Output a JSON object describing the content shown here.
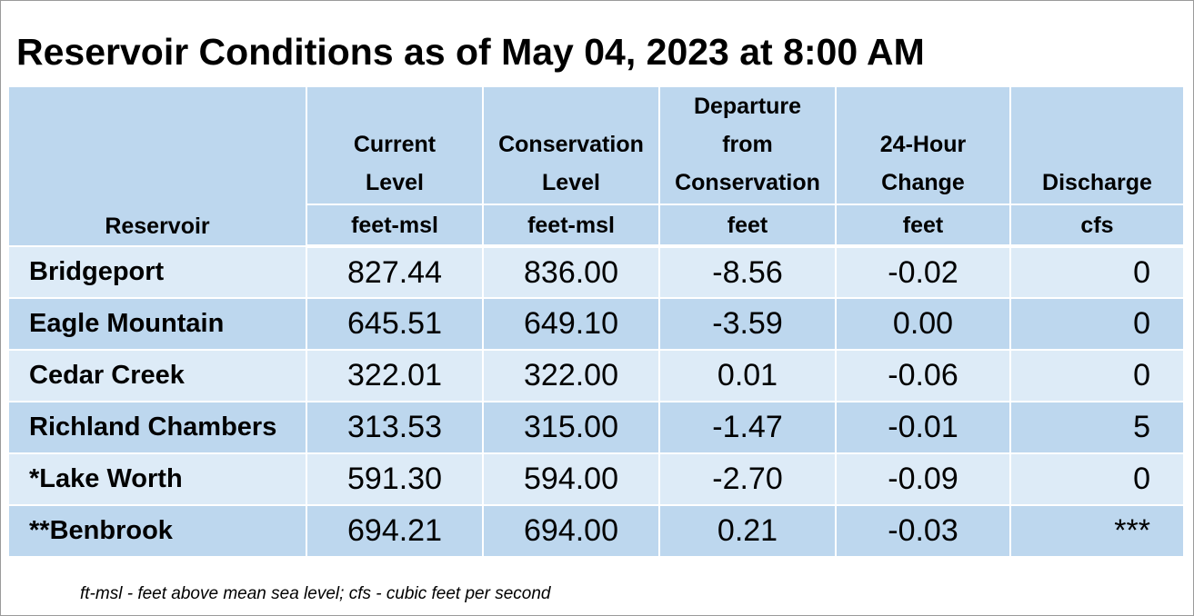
{
  "title": "Reservoir Conditions as of May 04, 2023 at 8:00 AM",
  "headers": {
    "reservoir": "Reservoir",
    "columns": [
      {
        "label_lines": [
          "Current",
          "Level"
        ],
        "unit": "feet-msl"
      },
      {
        "label_lines": [
          "Conservation",
          "Level"
        ],
        "unit": "feet-msl"
      },
      {
        "label_lines": [
          "Departure",
          "from",
          "Conservation"
        ],
        "unit": "feet"
      },
      {
        "label_lines": [
          "24-Hour",
          "Change"
        ],
        "unit": "feet"
      },
      {
        "label_lines": [
          "Discharge"
        ],
        "unit": "cfs"
      }
    ]
  },
  "rows": [
    {
      "name": "Bridgeport",
      "current": "827.44",
      "conservation": "836.00",
      "departure": "-8.56",
      "change": "-0.02",
      "discharge": "0"
    },
    {
      "name": "Eagle Mountain",
      "current": "645.51",
      "conservation": "649.10",
      "departure": "-3.59",
      "change": "0.00",
      "discharge": "0"
    },
    {
      "name": "Cedar Creek",
      "current": "322.01",
      "conservation": "322.00",
      "departure": "0.01",
      "change": "-0.06",
      "discharge": "0"
    },
    {
      "name": "Richland Chambers",
      "current": "313.53",
      "conservation": "315.00",
      "departure": "-1.47",
      "change": "-0.01",
      "discharge": "5"
    },
    {
      "name": "*Lake Worth",
      "current": "591.30",
      "conservation": "594.00",
      "departure": "-2.70",
      "change": "-0.09",
      "discharge": "0"
    },
    {
      "name": "**Benbrook",
      "current": "694.21",
      "conservation": "694.00",
      "departure": "0.21",
      "change": "-0.03",
      "discharge": "***"
    }
  ],
  "footnote": "ft-msl - feet above mean sea level; cfs - cubic feet per second",
  "colors": {
    "header_bg": "#bdd7ee",
    "row_light": "#ddebf7",
    "row_dark": "#bdd7ee"
  }
}
